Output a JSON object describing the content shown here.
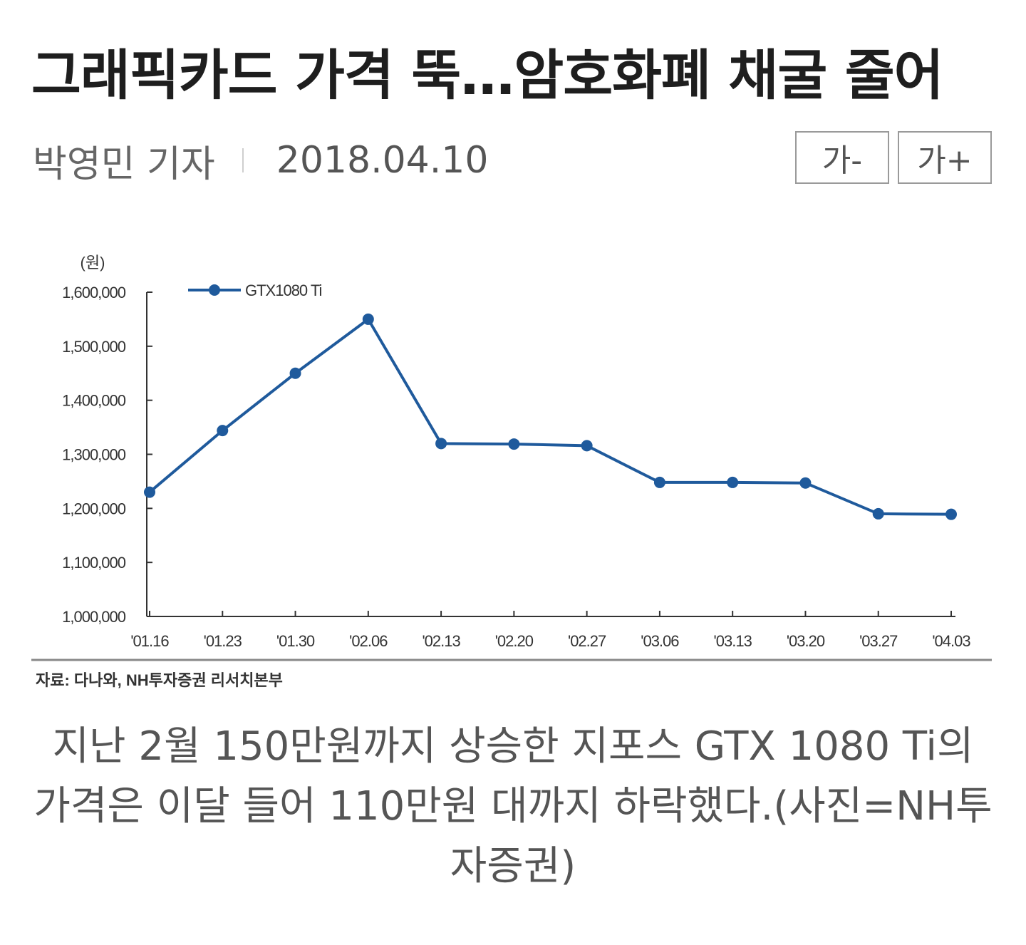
{
  "article": {
    "headline": "그래픽카드 가격 뚝…암호화폐 채굴 줄어",
    "reporter": "박영민 기자",
    "date": "2018.04.10",
    "font_decrease_label": "가-",
    "font_increase_label": "가+"
  },
  "figure": {
    "unit_label": "(원)",
    "source": "자료: 다나와, NH투자증권 리서치본부",
    "caption": "지난 2월 150만원까지 상승한 지포스 GTX 1080 Ti의 가격은 이달 들어 110만원 대까지 하락했다.(사진=NH투자증권)"
  },
  "chart_data": {
    "type": "line",
    "title": "",
    "xlabel": "",
    "ylabel": "(원)",
    "categories": [
      "'01.16",
      "'01.23",
      "'01.30",
      "'02.06",
      "'02.13",
      "'02.20",
      "'02.27",
      "'03.06",
      "'03.13",
      "'03.20",
      "'03.27",
      "'04.03"
    ],
    "series": [
      {
        "name": "GTX1080 Ti",
        "color": "#1f5a9c",
        "values": [
          1230000,
          1344000,
          1450000,
          1550000,
          1320000,
          1319000,
          1316000,
          1248000,
          1248000,
          1247000,
          1190000,
          1189000
        ]
      }
    ],
    "ylim": [
      1000000,
      1600000
    ],
    "yticks": [
      1000000,
      1100000,
      1200000,
      1300000,
      1400000,
      1500000,
      1600000
    ],
    "ytick_labels": [
      "1,000,000",
      "1,100,000",
      "1,200,000",
      "1,300,000",
      "1,400,000",
      "1,500,000",
      "1,600,000"
    ],
    "grid": false,
    "legend_position": "top-left"
  }
}
